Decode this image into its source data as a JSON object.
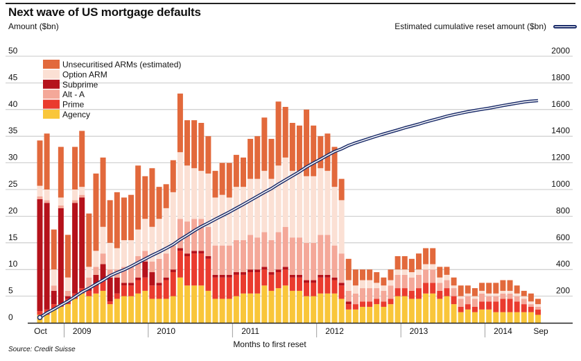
{
  "header": {
    "title": "Next wave of US mortgage defaults",
    "left_axis_label": "Amount ($bn)",
    "right_axis_label": "Estimated cumulative reset amount ($bn)"
  },
  "footer": {
    "source": "Source: Credit Suisse",
    "xlabel": "Months to first reset"
  },
  "colors": {
    "Unsecuritised ARMs (estimated)": "#e2693c",
    "Option ARM": "#fbe0d4",
    "Subprime": "#b5121b",
    "Alt - A": "#f4a899",
    "Prime": "#ea3b2e",
    "Agency": "#f9c63a",
    "line": "#1d2e6b"
  },
  "chart_data": {
    "type": "bar",
    "stacked": true,
    "title": "Next wave of US mortgage defaults",
    "xlabel": "Months to first reset",
    "ylabel": "Amount ($bn)",
    "y2label": "Estimated cumulative reset amount ($bn)",
    "ylim": [
      0,
      50
    ],
    "y2lim": [
      0,
      2000
    ],
    "yticks": [
      0,
      5,
      10,
      15,
      20,
      25,
      30,
      35,
      40,
      45,
      50
    ],
    "y2ticks": [
      200,
      400,
      600,
      800,
      1000,
      1200,
      1400,
      1600,
      1800,
      2000
    ],
    "legend_position": "top-left",
    "grid": true,
    "x_labels": [
      {
        "label": "Oct",
        "month_index": 0
      },
      {
        "label": "2009",
        "month_index": 6
      },
      {
        "label": "2010",
        "month_index": 18
      },
      {
        "label": "2011",
        "month_index": 30
      },
      {
        "label": "2012",
        "month_index": 42
      },
      {
        "label": "2013",
        "month_index": 54
      },
      {
        "label": "2014",
        "month_index": 66
      },
      {
        "label": "Sep",
        "month_index": 71
      }
    ],
    "series": [
      {
        "name": "Agency",
        "values": [
          1.5,
          1.5,
          2.5,
          3.0,
          3.5,
          4.5,
          5.5,
          5.0,
          5.5,
          6.0,
          3.5,
          4.5,
          5.0,
          5.0,
          5.5,
          6.0,
          4.5,
          4.5,
          4.5,
          5.0,
          8.5,
          7.0,
          7.0,
          7.0,
          6.0,
          4.5,
          4.5,
          4.5,
          5.0,
          5.5,
          5.5,
          5.5,
          7.0,
          6.0,
          6.5,
          7.0,
          6.0,
          6.0,
          5.0,
          5.0,
          5.5,
          5.5,
          5.5,
          4.5,
          2.5,
          2.5,
          3.0,
          3.0,
          3.5,
          3.0,
          3.5,
          5.0,
          5.0,
          4.5,
          4.5,
          5.5,
          5.5,
          4.5,
          5.0,
          3.5,
          2.0,
          2.5,
          2.0,
          2.5,
          2.5,
          2.0,
          2.0,
          2.0,
          2.0,
          2.0,
          2.0,
          1.5
        ]
      },
      {
        "name": "Prime",
        "values": [
          0.7,
          1.0,
          1.0,
          0.5,
          1.0,
          1.0,
          1.0,
          1.0,
          1.5,
          2.0,
          0.5,
          1.0,
          2.0,
          2.0,
          2.5,
          2.5,
          2.5,
          2.5,
          3.5,
          4.5,
          5.0,
          5.5,
          6.0,
          6.0,
          6.0,
          4.0,
          4.0,
          4.0,
          4.0,
          3.5,
          4.0,
          4.0,
          3.0,
          3.0,
          3.0,
          3.0,
          2.5,
          2.5,
          2.5,
          2.5,
          3.0,
          3.0,
          2.5,
          2.5,
          1.0,
          1.0,
          1.0,
          1.0,
          1.0,
          1.0,
          1.0,
          1.5,
          1.5,
          1.5,
          2.0,
          2.0,
          2.0,
          1.5,
          1.5,
          1.5,
          1.0,
          1.0,
          1.0,
          1.5,
          1.5,
          2.0,
          2.5,
          2.5,
          2.0,
          1.5,
          1.0,
          1.0
        ]
      },
      {
        "name": "Subprime",
        "values": [
          21.0,
          20.0,
          2.5,
          18.0,
          0.5,
          17.0,
          17.0,
          0.5,
          2.0,
          3.0,
          4.5,
          3.0,
          0.5,
          0.5,
          0.5,
          3.0,
          2.5,
          0.5,
          0.5,
          0.5,
          0.5,
          0.5,
          0.5,
          0.5,
          0.5,
          0.5,
          0.5,
          0.5,
          0.5,
          0.5,
          0.5,
          0.5,
          0.5,
          0.5,
          0.5,
          0.5,
          0.5,
          0.5,
          0.5,
          0.5,
          0.5,
          0.5,
          0.5,
          0.5,
          0.5,
          0.0,
          0.0,
          0.0,
          0.0,
          0.0,
          0.0,
          0.0,
          0.0,
          0.0,
          0.0,
          0.0,
          0.0,
          0.0,
          0.0,
          0.0,
          0.0,
          0.0,
          0.0,
          0.0,
          0.0,
          0.0,
          0.0,
          0.0,
          0.0,
          0.0,
          0.0,
          0.0
        ]
      },
      {
        "name": "Alt - A",
        "values": [
          0.5,
          0.5,
          1.0,
          0.5,
          1.0,
          0.5,
          0.5,
          2.0,
          1.5,
          2.0,
          1.5,
          1.5,
          3.0,
          3.0,
          4.0,
          2.0,
          2.0,
          4.5,
          4.5,
          4.5,
          5.5,
          6.0,
          6.0,
          6.0,
          5.5,
          5.5,
          5.5,
          5.5,
          6.0,
          6.0,
          6.5,
          6.0,
          6.5,
          6.0,
          7.0,
          7.5,
          7.0,
          7.0,
          7.0,
          7.0,
          7.5,
          7.5,
          6.0,
          5.5,
          2.0,
          2.0,
          2.5,
          2.5,
          2.0,
          2.0,
          2.5,
          2.5,
          2.5,
          2.5,
          2.5,
          2.5,
          2.5,
          1.5,
          1.5,
          1.5,
          1.5,
          1.5,
          1.5,
          1.5,
          1.0,
          1.0,
          1.0,
          1.0,
          1.0,
          1.0,
          0.5,
          0.5
        ]
      },
      {
        "name": "Option ARM",
        "values": [
          2.0,
          2.0,
          3.0,
          1.5,
          2.5,
          2.0,
          1.5,
          2.0,
          3.0,
          5.0,
          5.0,
          4.0,
          5.0,
          5.0,
          5.0,
          6.0,
          6.5,
          7.5,
          8.5,
          10.0,
          12.5,
          10.5,
          9.5,
          9.0,
          10.0,
          9.0,
          9.5,
          9.0,
          10.0,
          10.0,
          10.5,
          11.0,
          11.5,
          11.5,
          12.5,
          13.0,
          12.5,
          12.5,
          12.5,
          12.5,
          12.5,
          12.0,
          11.0,
          10.0,
          2.0,
          1.5,
          1.5,
          1.5,
          1.0,
          1.0,
          1.0,
          1.0,
          1.0,
          1.0,
          1.0,
          1.0,
          1.0,
          1.0,
          1.0,
          0.5,
          0.5,
          0.5,
          0.5,
          0.5,
          0.5,
          0.5,
          0.5,
          0.5,
          0.5,
          0.5,
          0.5,
          0.5
        ]
      },
      {
        "name": "Unsecuritised ARMs (estimated)",
        "values": [
          8.5,
          10.5,
          7.5,
          9.5,
          8.0,
          8.0,
          10.5,
          10.0,
          14.5,
          13.0,
          8.0,
          10.5,
          8.0,
          8.5,
          12.0,
          8.0,
          11.0,
          6.0,
          4.5,
          6.0,
          11.0,
          8.5,
          9.0,
          9.0,
          7.0,
          5.0,
          6.0,
          6.5,
          6.0,
          5.5,
          7.5,
          8.0,
          10.0,
          7.5,
          12.0,
          9.5,
          9.0,
          8.5,
          12.5,
          9.5,
          6.0,
          7.0,
          7.5,
          4.0,
          4.0,
          3.0,
          2.0,
          2.0,
          2.0,
          1.5,
          2.0,
          2.5,
          2.5,
          2.5,
          3.0,
          3.0,
          3.0,
          2.0,
          1.5,
          1.5,
          2.0,
          1.5,
          1.5,
          1.5,
          2.0,
          2.0,
          2.0,
          2.0,
          1.5,
          1.0,
          1.5,
          1.0
        ]
      },
      {
        "name": "Estimated cumulative reset amount",
        "axis": "right",
        "type": "line",
        "values": [
          40,
          74,
          102,
          133,
          162,
          196,
          231,
          259,
          290,
          320,
          353,
          377,
          398,
          424,
          452,
          479,
          507,
          532,
          559,
          588,
          625,
          657,
          691,
          722,
          749,
          777,
          804,
          831,
          860,
          889,
          919,
          949,
          979,
          1007,
          1041,
          1072,
          1103,
          1134,
          1169,
          1199,
          1227,
          1257,
          1285,
          1305,
          1331,
          1350,
          1367,
          1384,
          1401,
          1417,
          1432,
          1447,
          1463,
          1477,
          1491,
          1507,
          1521,
          1535,
          1550,
          1562,
          1573,
          1584,
          1593,
          1602,
          1610,
          1620,
          1630,
          1639,
          1648,
          1657,
          1663,
          1667
        ]
      }
    ]
  }
}
